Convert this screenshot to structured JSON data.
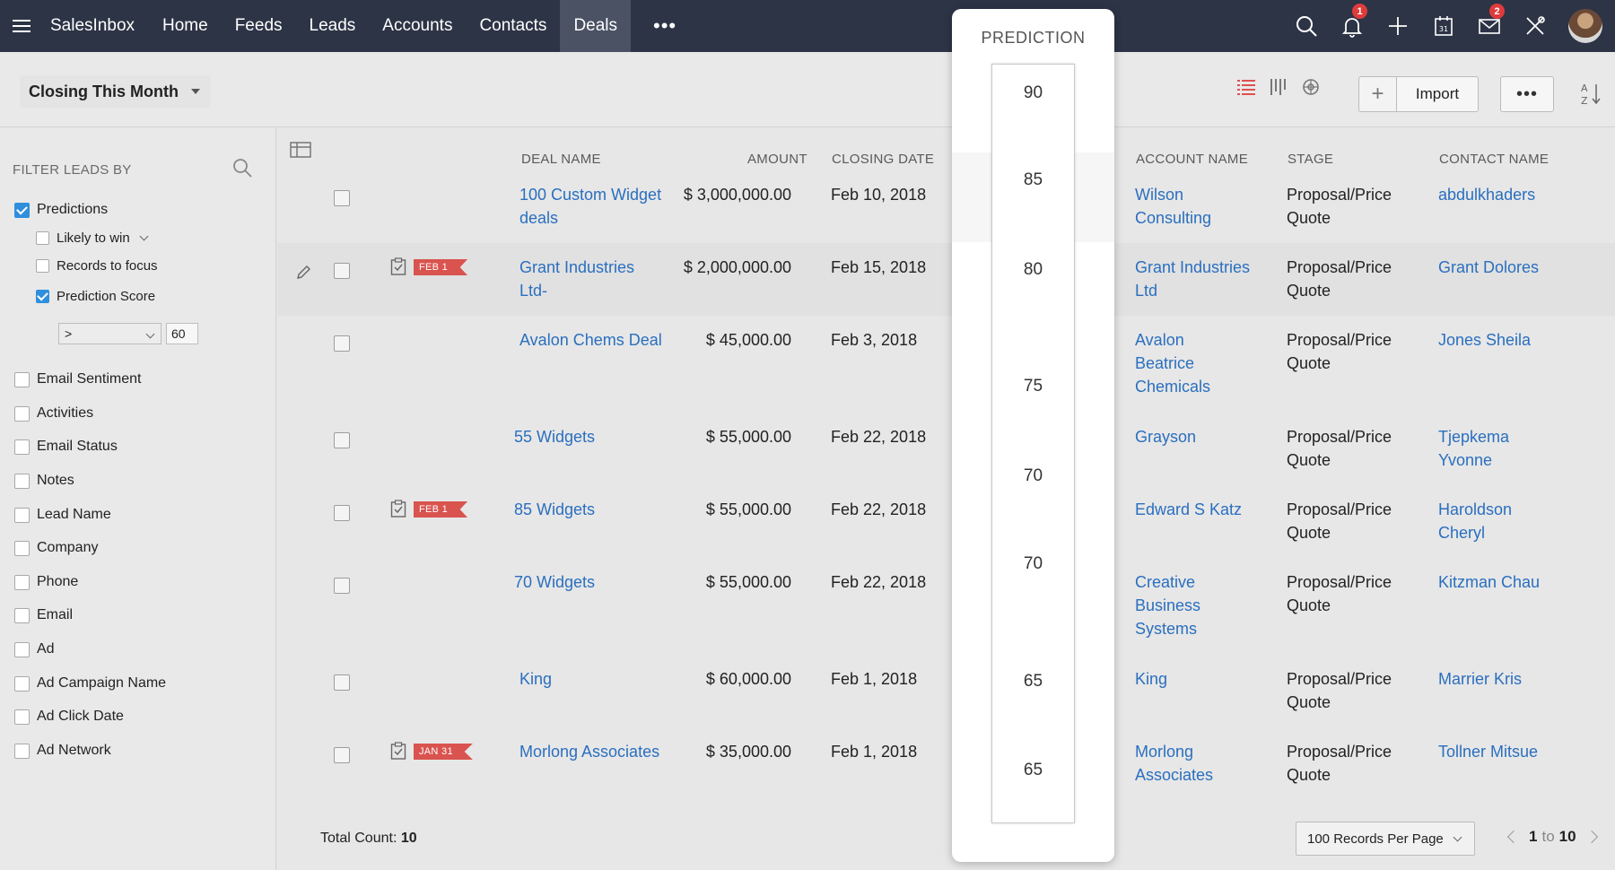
{
  "nav": {
    "brand": "SalesInbox",
    "items": [
      "Home",
      "Feeds",
      "Leads",
      "Accounts",
      "Contacts",
      "Deals"
    ],
    "active_index": 5,
    "more": "•••",
    "notification_count": "1",
    "mail_count": "2"
  },
  "subheader": {
    "view_name": "Closing This Month",
    "plus_label": "+",
    "import_label": "Import",
    "more_label": "•••"
  },
  "sidebar": {
    "title": "FILTER LEADS BY",
    "predictions": {
      "label": "Predictions",
      "checked": true,
      "children": [
        {
          "label": "Likely to win",
          "checked": false,
          "has_dropdown": true
        },
        {
          "label": "Records to focus",
          "checked": false
        },
        {
          "label": "Prediction Score",
          "checked": true
        }
      ],
      "operator": ">",
      "score": "60"
    },
    "filters": [
      "Email Sentiment",
      "Activities",
      "Email Status",
      "Notes",
      "Lead Name",
      "Company",
      "Phone",
      "Email",
      "Ad",
      "Ad Campaign Name",
      "Ad Click Date",
      "Ad Network"
    ]
  },
  "table": {
    "headers": {
      "deal_name": "DEAL NAME",
      "amount": "AMOUNT",
      "closing_date": "CLOSING DATE",
      "account_name": "ACCOUNT NAME",
      "stage": "STAGE",
      "contact_name": "CONTACT NAME"
    },
    "rows": [
      {
        "deal": "100 Custom Widget deals",
        "amount": "$ 3,000,000.00",
        "date": "Feb 10, 2018",
        "account": "Wilson Consulting",
        "stage": "Proposal/Price Quote",
        "contact": "abdulkhaders",
        "flag": ""
      },
      {
        "deal": "Grant Industries Ltd-",
        "amount": "$ 2,000,000.00",
        "date": "Feb 15, 2018",
        "account": "Grant Industries Ltd",
        "stage": "Proposal/Price Quote",
        "contact": "Grant Dolores",
        "flag": "FEB 1"
      },
      {
        "deal": "Avalon Chems Deal",
        "amount": "$ 45,000.00",
        "date": "Feb 3, 2018",
        "account": "Avalon Beatrice Chemicals",
        "stage": "Proposal/Price Quote",
        "contact": "Jones Sheila",
        "flag": ""
      },
      {
        "deal": "55 Widgets",
        "amount": "$ 55,000.00",
        "date": "Feb 22, 2018",
        "account": "Grayson",
        "stage": "Proposal/Price Quote",
        "contact": "Tjepkema Yvonne",
        "flag": ""
      },
      {
        "deal": "85 Widgets",
        "amount": "$ 55,000.00",
        "date": "Feb 22, 2018",
        "account": "Edward S Katz",
        "stage": "Proposal/Price Quote",
        "contact": "Haroldson Cheryl",
        "flag": "FEB 1"
      },
      {
        "deal": "70 Widgets",
        "amount": "$ 55,000.00",
        "date": "Feb 22, 2018",
        "account": "Creative Business Systems",
        "stage": "Proposal/Price Quote",
        "contact": "Kitzman Chau",
        "flag": ""
      },
      {
        "deal": "King",
        "amount": "$ 60,000.00",
        "date": "Feb 1, 2018",
        "account": "King",
        "stage": "Proposal/Price Quote",
        "contact": "Marrier Kris",
        "flag": ""
      },
      {
        "deal": "Morlong Associates",
        "amount": "$ 35,000.00",
        "date": "Feb 1, 2018",
        "account": "Morlong Associates",
        "stage": "Proposal/Price Quote",
        "contact": "Tollner Mitsue",
        "flag": "JAN 31"
      }
    ],
    "total_count_label": "Total Count:",
    "total_count": "10",
    "per_page": "100 Records Per Page",
    "pager_from": "1",
    "pager_to_word": "to",
    "pager_to": "10"
  },
  "prediction": {
    "title": "PREDICTION",
    "values": [
      "90",
      "85",
      "80",
      "75",
      "70",
      "70",
      "65",
      "65"
    ]
  },
  "colors": {
    "nav_bg": "#2d3446",
    "link": "#2a6fbf",
    "checkbox_checked": "#2f8fdd",
    "flag": "#d9534f",
    "badge": "#e03b3b",
    "list_view_icon": "#e05050"
  }
}
